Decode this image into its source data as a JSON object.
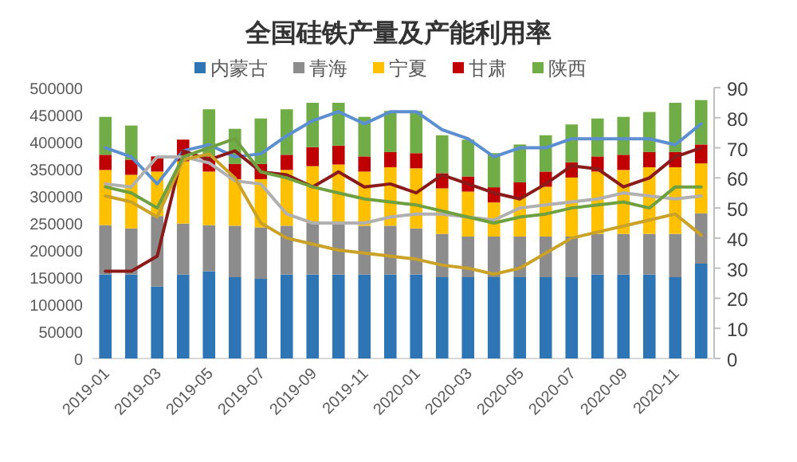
{
  "chart_data": {
    "type": "bar",
    "title": "全国硅铁产量及产能利用率",
    "stacked": true,
    "legend": "top",
    "categories": [
      "2019-01",
      null,
      "2019-03",
      null,
      "2019-05",
      null,
      "2019-07",
      null,
      "2019-09",
      null,
      "2019-11",
      null,
      "2020-01",
      null,
      "2020-03",
      null,
      "2020-05",
      null,
      "2020-07",
      null,
      "2020-09",
      null,
      "2020-11",
      null
    ],
    "ylim": [
      0,
      500000
    ],
    "yticks": [
      0,
      50000,
      100000,
      150000,
      200000,
      250000,
      300000,
      350000,
      400000,
      450000,
      500000
    ],
    "y2lim": [
      0,
      90
    ],
    "y2ticks": [
      0,
      10,
      20,
      30,
      40,
      50,
      60,
      70,
      80,
      90
    ],
    "series": [
      {
        "name": "内蒙古",
        "color": "#2e75b6",
        "values": [
          155000,
          155000,
          133000,
          155000,
          161000,
          150000,
          147000,
          155000,
          155000,
          155000,
          155000,
          155000,
          155000,
          150000,
          150000,
          150000,
          150000,
          150000,
          150000,
          155000,
          155000,
          155000,
          150000,
          175000
        ]
      },
      {
        "name": "青海",
        "color": "#8c8c8c",
        "values": [
          91000,
          85000,
          130000,
          94000,
          85000,
          95000,
          95000,
          90000,
          95000,
          95000,
          90000,
          90000,
          85000,
          80000,
          75000,
          75000,
          75000,
          75000,
          75000,
          75000,
          75000,
          75000,
          80000,
          93000
        ]
      },
      {
        "name": "宁夏",
        "color": "#ffc000",
        "values": [
          102000,
          99000,
          82000,
          115000,
          99000,
          86000,
          89000,
          103000,
          105000,
          108000,
          100000,
          108000,
          111000,
          84000,
          83000,
          63000,
          72000,
          92000,
          109000,
          115000,
          118000,
          123000,
          123000,
          92000
        ]
      },
      {
        "name": "甘肃",
        "color": "#c00000",
        "values": [
          28000,
          28000,
          28000,
          40000,
          28000,
          28000,
          28000,
          28000,
          35000,
          35000,
          28000,
          28000,
          28000,
          28000,
          28000,
          28000,
          28000,
          28000,
          28000,
          28000,
          28000,
          28000,
          28000,
          35000
        ]
      },
      {
        "name": "陕西",
        "color": "#70ad47",
        "values": [
          70000,
          63000,
          0,
          0,
          87000,
          65000,
          84000,
          84000,
          82000,
          79000,
          73000,
          76000,
          78000,
          70000,
          68000,
          63000,
          70000,
          67000,
          70000,
          70000,
          70000,
          74000,
          91000,
          82000
        ]
      },
      {
        "type": "line",
        "axis": "y2",
        "color": "#5b8fd0",
        "values": [
          70,
          67,
          58,
          69,
          71,
          67,
          68,
          74,
          79,
          82,
          78,
          82,
          82,
          76,
          73,
          67,
          70,
          70,
          73,
          73,
          73,
          73,
          71,
          78
        ]
      },
      {
        "type": "line",
        "axis": "y2",
        "color": "#8b1a1a",
        "values": [
          29,
          29,
          34,
          69,
          66,
          69,
          62,
          61,
          57,
          62,
          57,
          58,
          55,
          61,
          58,
          55,
          53,
          58,
          64,
          63,
          57,
          60,
          67,
          70
        ]
      },
      {
        "type": "line",
        "axis": "y2",
        "color": "#b0b0b0",
        "values": [
          58,
          57,
          67,
          67,
          65,
          59,
          58,
          48,
          45,
          45,
          45,
          47,
          48,
          48,
          47,
          46,
          50,
          51,
          52,
          53,
          55,
          54,
          53,
          54
        ]
      },
      {
        "type": "line",
        "axis": "y2",
        "color": "#c9a227",
        "values": [
          54,
          52,
          47,
          66,
          68,
          60,
          45,
          40,
          38,
          36,
          35,
          34,
          33,
          31,
          30,
          28,
          30,
          35,
          40,
          42,
          44,
          46,
          48,
          41
        ]
      },
      {
        "type": "line",
        "axis": "y2",
        "color": "#6fa040",
        "values": [
          57,
          55,
          50,
          67,
          70,
          73,
          62,
          60,
          57,
          55,
          53,
          52,
          51,
          49,
          47,
          45,
          47,
          48,
          50,
          51,
          52,
          50,
          57,
          57
        ]
      }
    ]
  }
}
